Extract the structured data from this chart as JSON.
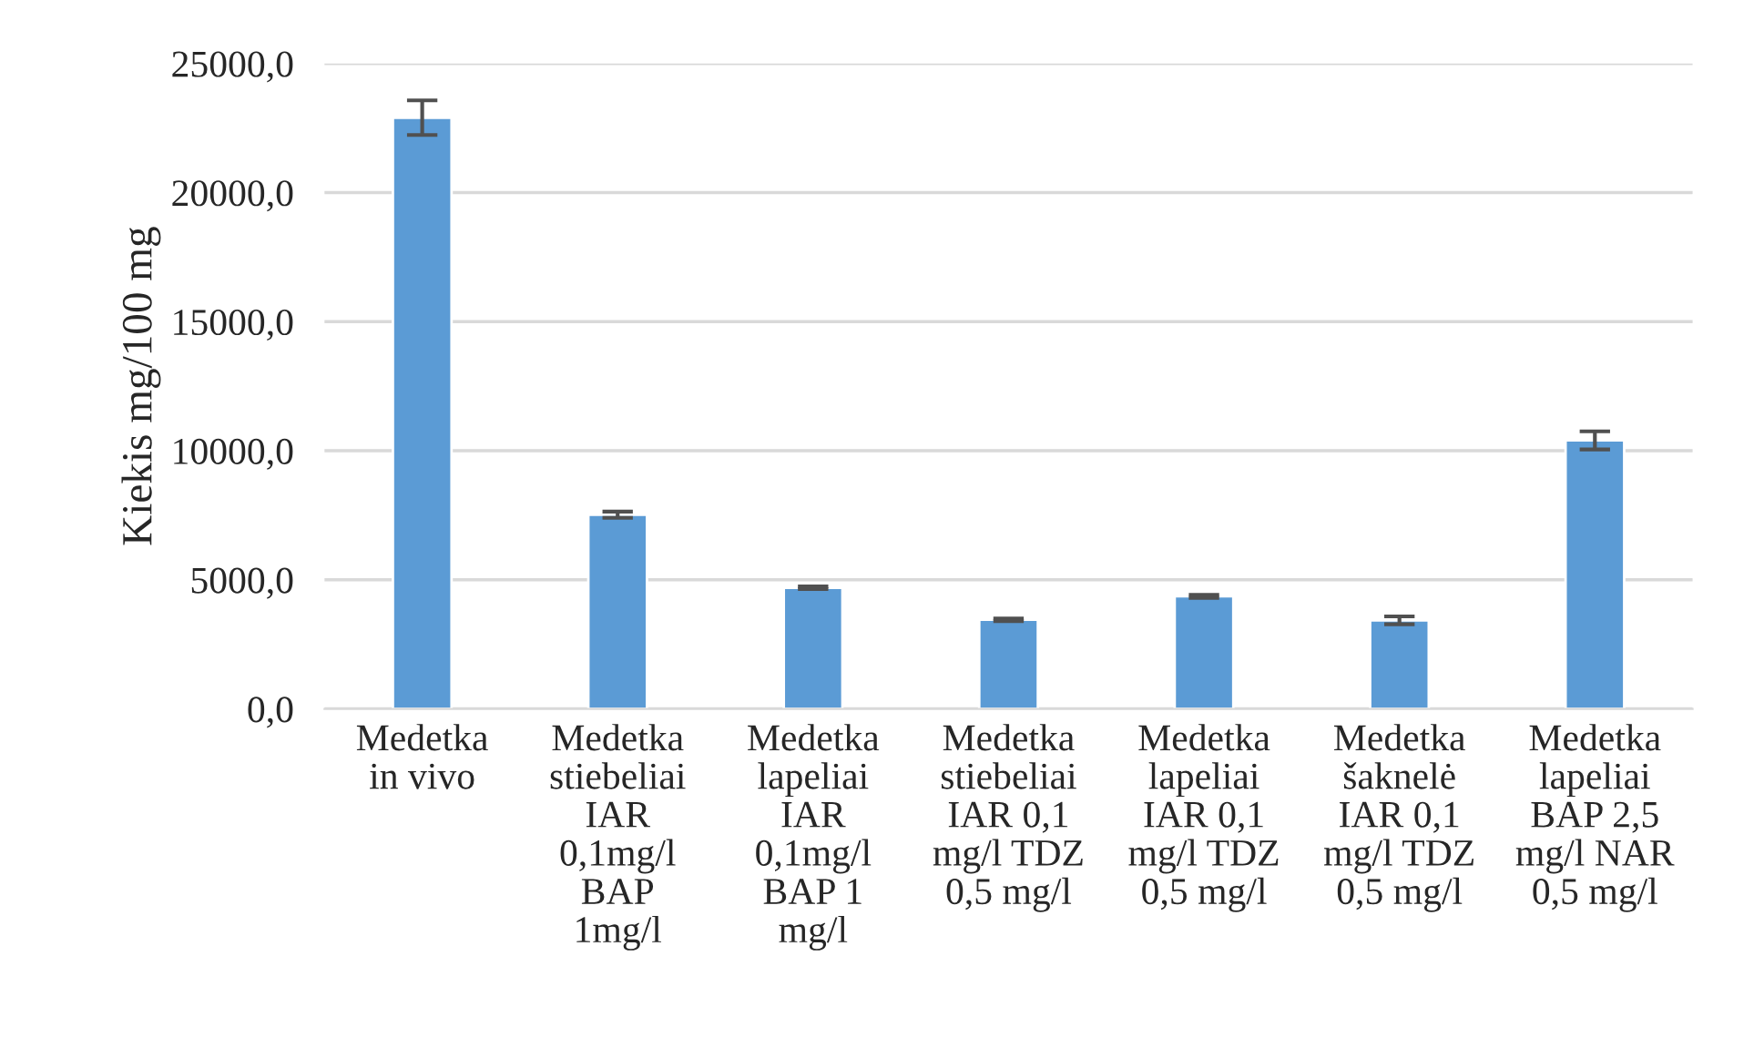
{
  "chart_data": {
    "type": "bar",
    "ylabel": "Kiekis mg/100 mg",
    "categories": [
      "Medetka\nin vivo",
      "Medetka\nstiebeliai\nIAR\n0,1mg/l\nBAP\n1mg/l",
      "Medetka\nlapeliai\nIAR\n0,1mg/l\nBAP 1\nmg/l",
      "Medetka\nstiebeliai\nIAR 0,1\nmg/l TDZ\n0,5 mg/l",
      "Medetka\nlapeliai\nIAR 0,1\nmg/l TDZ\n0,5 mg/l",
      "Medetka\nšaknelė\nIAR 0,1\nmg/l TDZ\n0,5 mg/l",
      "Medetka\nlapeliai\nBAP 2,5\nmg/l NAR\n0,5 mg/l"
    ],
    "values": [
      22900,
      7520,
      4690,
      3450,
      4360,
      3430,
      10400
    ],
    "errors": [
      670,
      120,
      50,
      50,
      60,
      150,
      350
    ],
    "color": "#5b9bd5",
    "ylim": [
      0,
      25000
    ],
    "yticks": [
      {
        "value": 0,
        "label": "0,0"
      },
      {
        "value": 5000,
        "label": "5000,0"
      },
      {
        "value": 10000,
        "label": "10000,0"
      },
      {
        "value": 15000,
        "label": "15000,0"
      },
      {
        "value": 20000,
        "label": "20000,0"
      },
      {
        "value": 25000,
        "label": "25000,0"
      }
    ],
    "grid": "y"
  }
}
